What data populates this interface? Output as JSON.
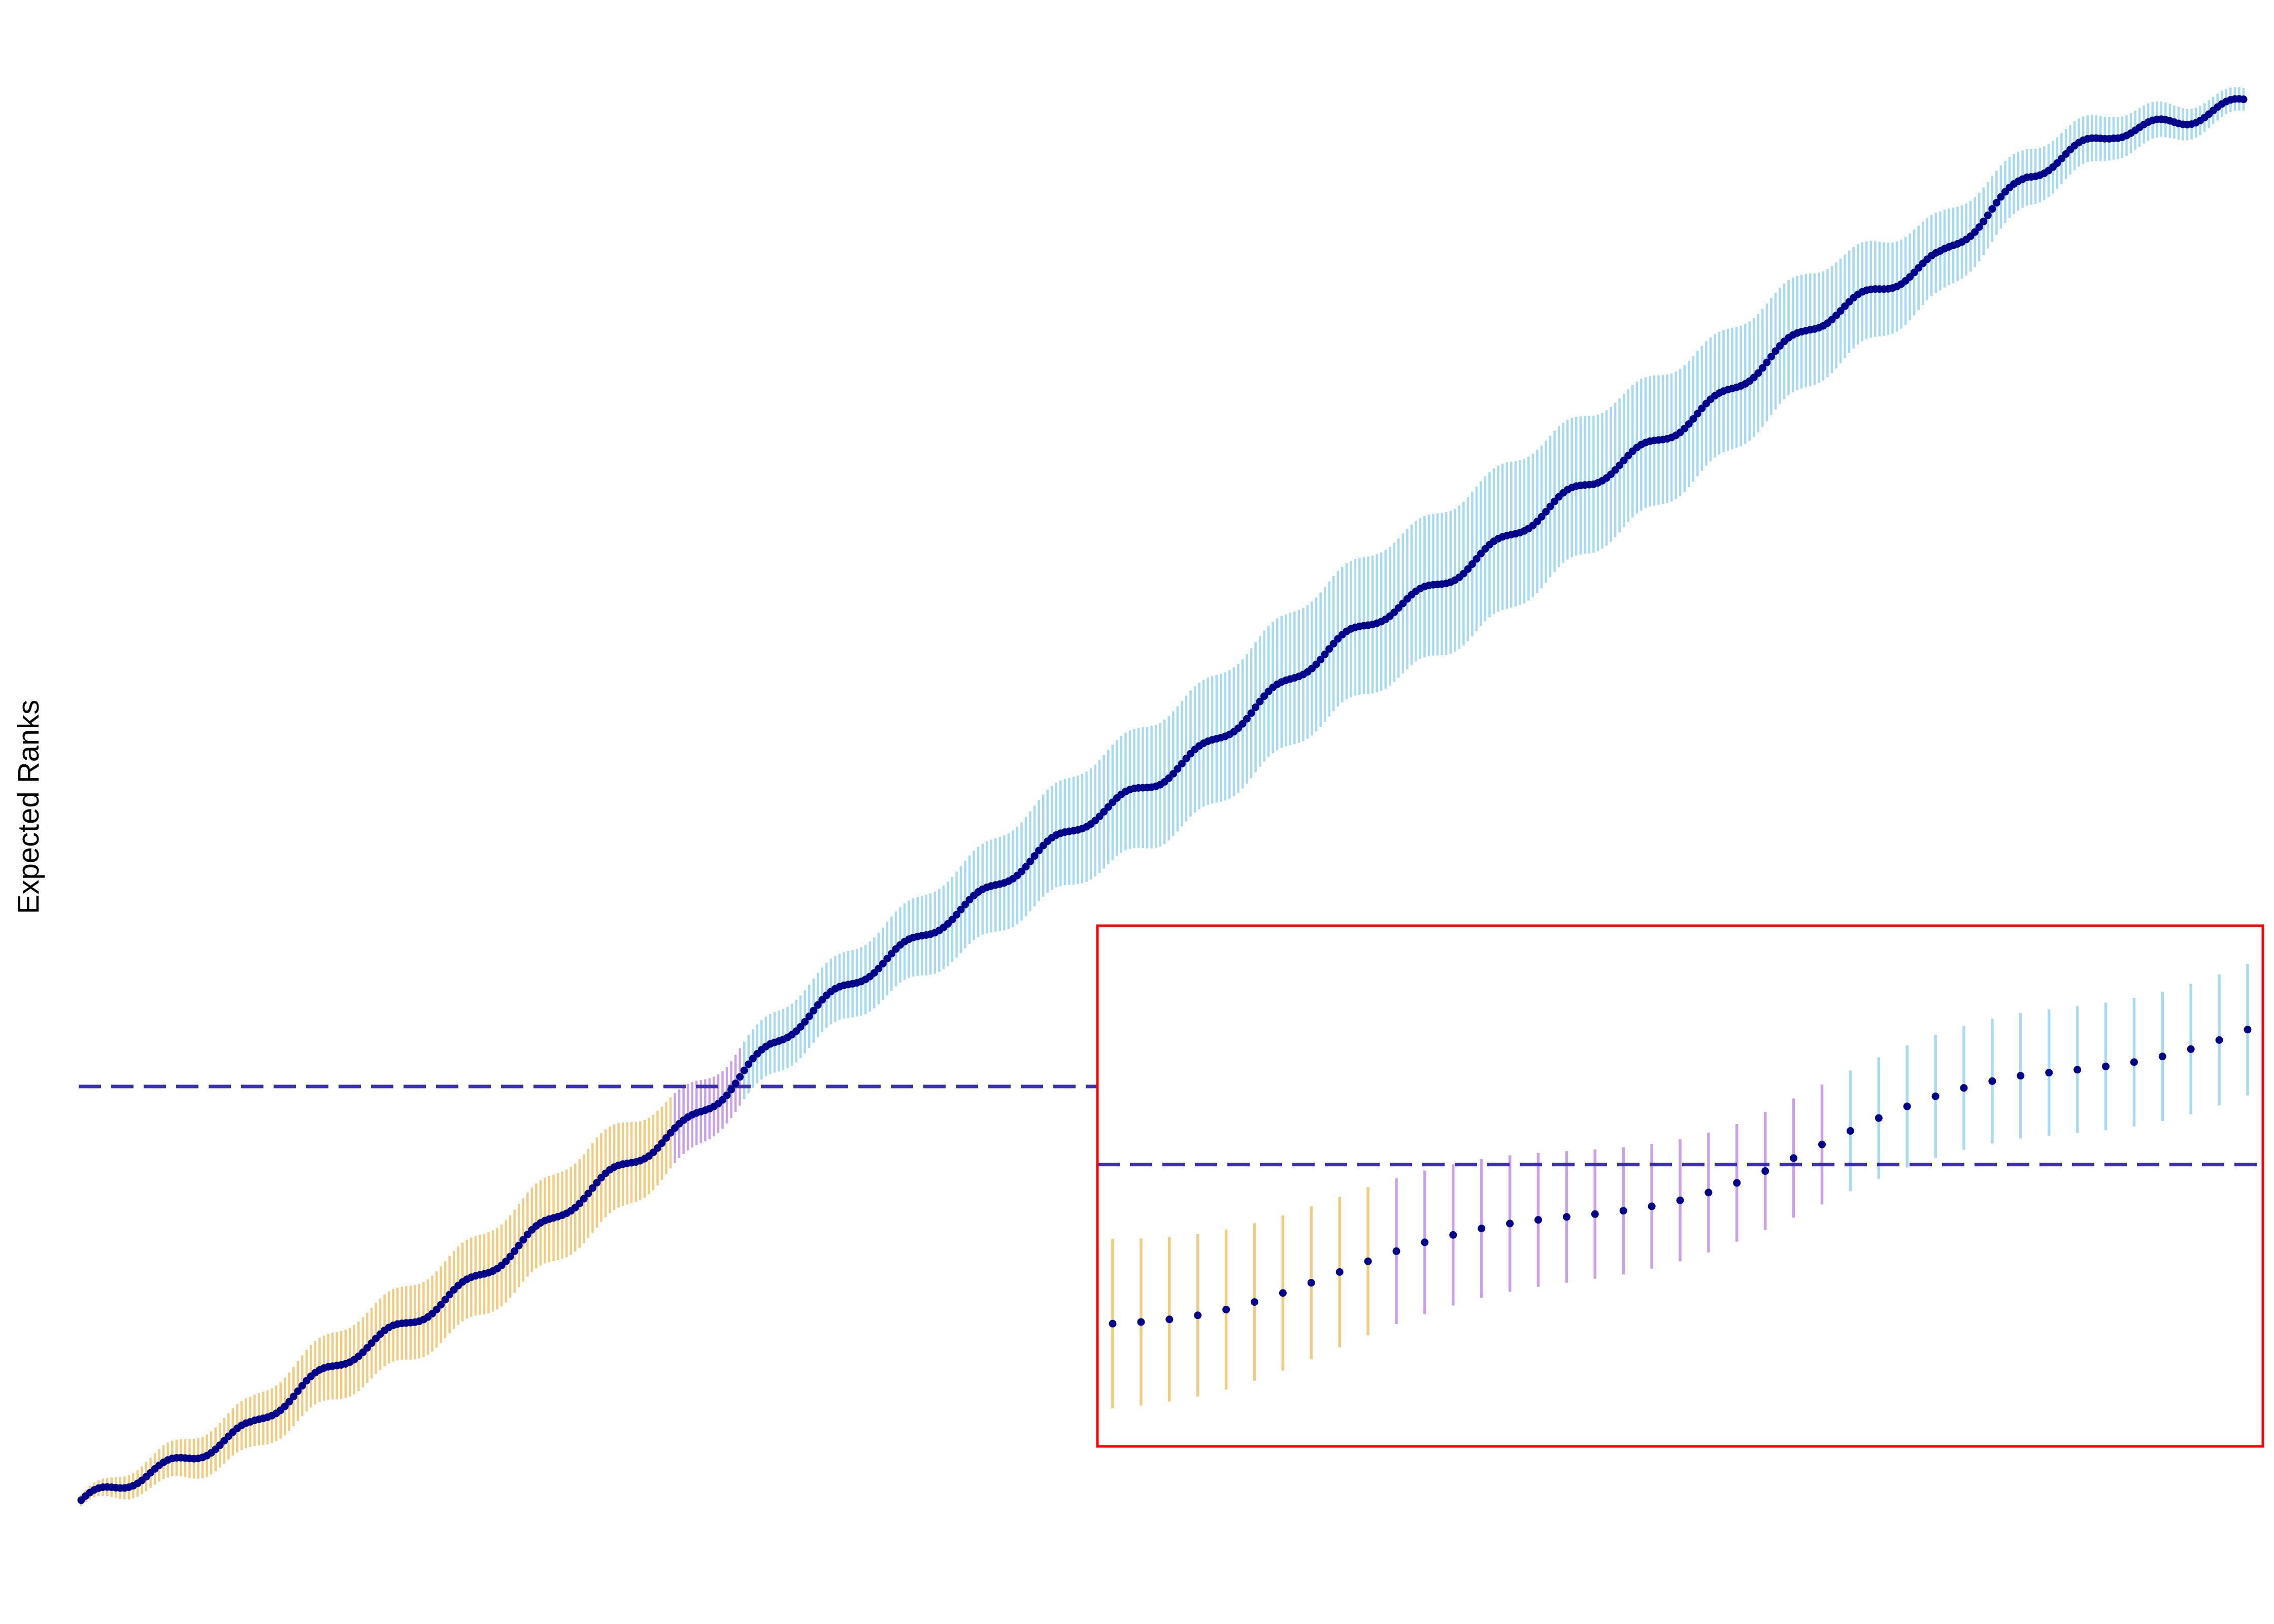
{
  "chart_data": {
    "type": "scatter",
    "title": "",
    "xlabel": "",
    "ylabel": "Expected Ranks",
    "grid": false,
    "legend": "none",
    "n_points": 500,
    "xlim": [
      1,
      500
    ],
    "ylim": [
      1,
      500
    ],
    "reference_rank": 150,
    "curve_anchors": {
      "index": [
        1,
        40,
        75,
        110,
        140,
        150,
        160,
        200,
        250,
        300,
        350,
        400,
        430,
        450,
        470,
        500
      ],
      "rank": [
        1,
        30,
        65,
        102,
        137,
        150,
        164,
        210,
        260,
        316,
        364,
        418,
        446,
        472,
        488,
        500
      ]
    },
    "interval_halfwidth_anchors": {
      "index": [
        1,
        20,
        60,
        120,
        150,
        180,
        250,
        330,
        400,
        450,
        500
      ],
      "halfwidth": [
        2,
        6,
        12,
        16,
        10,
        12,
        22,
        26,
        20,
        10,
        4
      ]
    },
    "groups": [
      {
        "name": "below",
        "color": "#f1cc80",
        "from_index": 1,
        "to_index": 137
      },
      {
        "name": "overlap",
        "color": "#c9a0ea",
        "from_index": 138,
        "to_index": 153
      },
      {
        "name": "above",
        "color": "#a6d9f2",
        "from_index": 154,
        "to_index": 500
      }
    ],
    "point_color": "#00008b",
    "reference_line_color": "#3a2fb0",
    "inset": {
      "index_range": [
        128,
        168
      ],
      "border_color": "#ff0000"
    }
  }
}
